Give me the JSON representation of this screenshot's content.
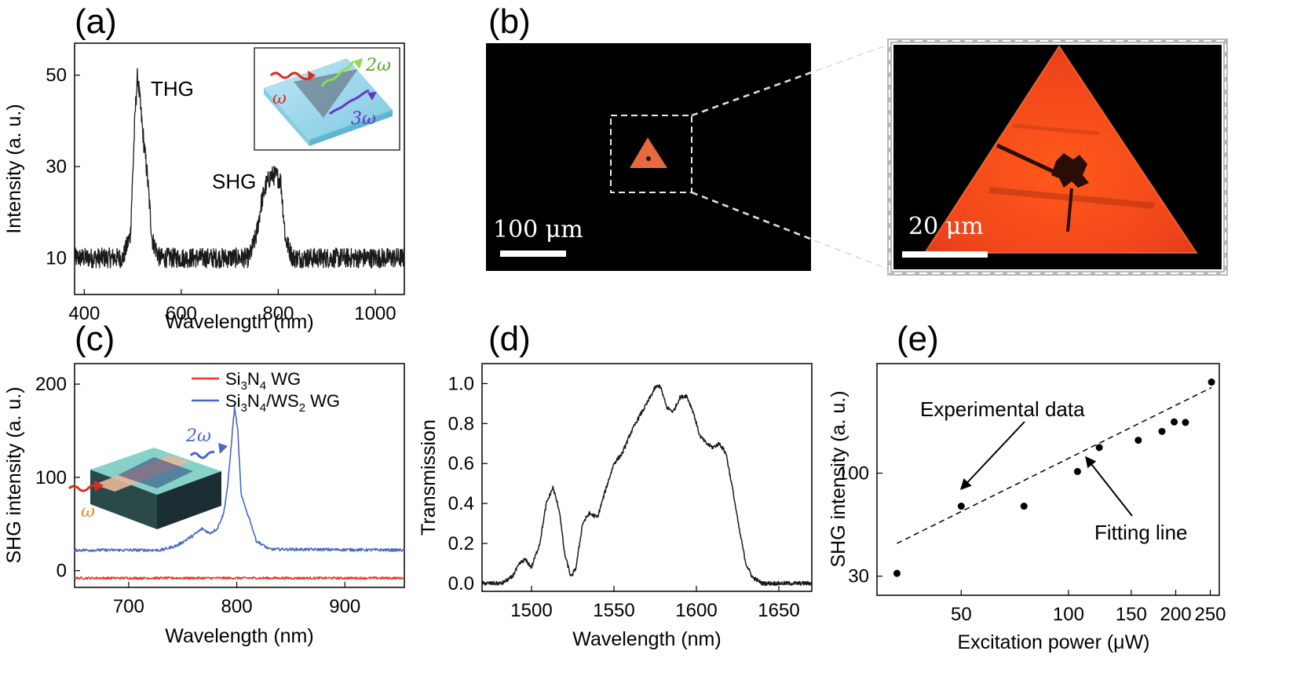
{
  "panels": {
    "a": "(a)",
    "b": "(b)",
    "c": "(c)",
    "d": "(d)",
    "e": "(e)"
  },
  "chart_data": [
    {
      "id": "a",
      "type": "line",
      "xlabel": "Wavelength (nm)",
      "ylabel": "Intensity (a. u.)",
      "xlim": [
        380,
        1060
      ],
      "ylim": [
        2,
        57
      ],
      "xticks": [
        400,
        600,
        800,
        1000
      ],
      "yticks": [
        10,
        30,
        50
      ],
      "annotations": [
        "THG",
        "SHG"
      ],
      "inset_labels": [
        "ω",
        "2ω",
        "3ω"
      ],
      "series": [
        {
          "color": "#1a1a1a",
          "points": [
            [
              380,
              10
            ],
            [
              480,
              10
            ],
            [
              495,
              15
            ],
            [
              505,
              42
            ],
            [
              510,
              50
            ],
            [
              515,
              44
            ],
            [
              522,
              36
            ],
            [
              530,
              28
            ],
            [
              540,
              14
            ],
            [
              555,
              10
            ],
            [
              740,
              10
            ],
            [
              755,
              15
            ],
            [
              765,
              22
            ],
            [
              775,
              26
            ],
            [
              785,
              28
            ],
            [
              795,
              28
            ],
            [
              805,
              27
            ],
            [
              815,
              14
            ],
            [
              830,
              10
            ],
            [
              1060,
              10
            ]
          ],
          "noise": 2.2
        }
      ]
    },
    {
      "id": "b",
      "type": "image",
      "scale_labels": [
        "100 μm",
        "20 μm"
      ]
    },
    {
      "id": "c",
      "type": "line",
      "xlabel": "Wavelength (nm)",
      "ylabel": "SHG intensity (a. u.)",
      "xlim": [
        650,
        955
      ],
      "ylim": [
        -18,
        222
      ],
      "xticks": [
        700,
        800,
        900
      ],
      "yticks": [
        0,
        100,
        200
      ],
      "inset_labels": [
        "ω",
        "2ω"
      ],
      "series": [
        {
          "name": "Si3N4 WG",
          "name_parts": [
            "Si",
            "3",
            "N",
            "4",
            " WG"
          ],
          "color": "#e8372a",
          "points": [
            [
              650,
              -8
            ],
            [
              955,
              -8
            ]
          ],
          "noise": 1.2
        },
        {
          "name": "Si3N4/WS2 WG",
          "name_parts": [
            "Si",
            "3",
            "N",
            "4",
            "/WS",
            "2",
            " WG"
          ],
          "color": "#4a66c9",
          "points": [
            [
              650,
              22
            ],
            [
              730,
              22
            ],
            [
              745,
              27
            ],
            [
              760,
              38
            ],
            [
              768,
              45
            ],
            [
              775,
              40
            ],
            [
              782,
              45
            ],
            [
              788,
              62
            ],
            [
              792,
              95
            ],
            [
              796,
              150
            ],
            [
              798,
              175
            ],
            [
              801,
              150
            ],
            [
              804,
              82
            ],
            [
              808,
              67
            ],
            [
              812,
              55
            ],
            [
              818,
              32
            ],
            [
              830,
              23
            ],
            [
              955,
              22
            ]
          ],
          "noise": 1.5
        }
      ]
    },
    {
      "id": "d",
      "type": "line",
      "xlabel": "Wavelength (nm)",
      "ylabel": "Transmission",
      "xlim": [
        1470,
        1670
      ],
      "ylim": [
        -0.04,
        1.1
      ],
      "xticks": [
        1500,
        1550,
        1600,
        1650
      ],
      "yticks": [
        0.0,
        0.2,
        0.4,
        0.6,
        0.8,
        1.0
      ],
      "series": [
        {
          "color": "#1a1a1a",
          "points": [
            [
              1470,
              0.0
            ],
            [
              1482,
              0.0
            ],
            [
              1488,
              0.03
            ],
            [
              1493,
              0.1
            ],
            [
              1496,
              0.12
            ],
            [
              1500,
              0.08
            ],
            [
              1505,
              0.2
            ],
            [
              1509,
              0.4
            ],
            [
              1513,
              0.48
            ],
            [
              1517,
              0.36
            ],
            [
              1520,
              0.15
            ],
            [
              1524,
              0.03
            ],
            [
              1527,
              0.08
            ],
            [
              1531,
              0.3
            ],
            [
              1535,
              0.35
            ],
            [
              1540,
              0.33
            ],
            [
              1545,
              0.47
            ],
            [
              1550,
              0.6
            ],
            [
              1555,
              0.65
            ],
            [
              1560,
              0.75
            ],
            [
              1565,
              0.83
            ],
            [
              1570,
              0.9
            ],
            [
              1575,
              0.98
            ],
            [
              1578,
              0.99
            ],
            [
              1582,
              0.88
            ],
            [
              1586,
              0.86
            ],
            [
              1590,
              0.93
            ],
            [
              1594,
              0.94
            ],
            [
              1598,
              0.86
            ],
            [
              1602,
              0.74
            ],
            [
              1606,
              0.7
            ],
            [
              1610,
              0.68
            ],
            [
              1614,
              0.7
            ],
            [
              1618,
              0.65
            ],
            [
              1622,
              0.47
            ],
            [
              1626,
              0.27
            ],
            [
              1630,
              0.1
            ],
            [
              1634,
              0.03
            ],
            [
              1640,
              0.0
            ],
            [
              1670,
              0.0
            ]
          ],
          "noise": 0.01
        }
      ]
    },
    {
      "id": "e",
      "type": "scatter",
      "xlabel": "Excitation power (μW)",
      "ylabel": "SHG intensity (a. u.)",
      "xscale": "log",
      "yscale": "log",
      "xlim": [
        29,
        265
      ],
      "ylim": [
        24,
        360
      ],
      "xticks": [
        50,
        100,
        150,
        200,
        250
      ],
      "yticks": [
        30,
        100
      ],
      "annotations": [
        "Experimental data",
        "Fitting line"
      ],
      "series": [
        {
          "x": [
            33,
            50,
            75,
            106,
            122,
            157,
            183,
            198,
            213,
            252
          ],
          "y": [
            31,
            68,
            68,
            102,
            135,
            147,
            163,
            182,
            181,
            290
          ]
        }
      ],
      "fit": {
        "x": [
          33,
          252
        ],
        "y": [
          44,
          272
        ]
      }
    }
  ]
}
